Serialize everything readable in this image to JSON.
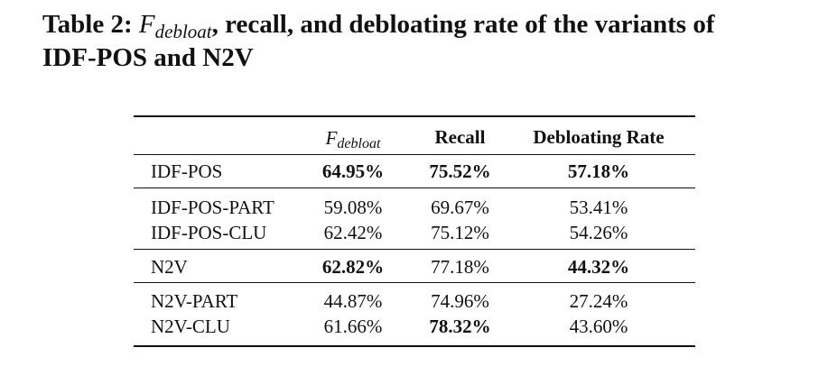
{
  "caption": {
    "label": "Table 2:",
    "f_symbol": "F",
    "f_subscript": "debloat",
    "rest_line1": ", recall, and debloating rate of the variants of",
    "rest_line2": "IDF-POS and N2V"
  },
  "table": {
    "headers": {
      "variant": "",
      "f_symbol": "F",
      "f_subscript": "debloat",
      "recall": "Recall",
      "debloating_rate": "Debloating Rate"
    },
    "rows": [
      {
        "name": "IDF-POS",
        "f": "64.95%",
        "recall": "75.52%",
        "rate": "57.18%",
        "bold": {
          "f": true,
          "recall": true,
          "rate": true
        }
      },
      {
        "name": "IDF-POS-PART",
        "f": "59.08%",
        "recall": "69.67%",
        "rate": "53.41%",
        "bold": {
          "f": false,
          "recall": false,
          "rate": false
        }
      },
      {
        "name": "IDF-POS-CLU",
        "f": "62.42%",
        "recall": "75.12%",
        "rate": "54.26%",
        "bold": {
          "f": false,
          "recall": false,
          "rate": false
        }
      },
      {
        "name": "N2V",
        "f": "62.82%",
        "recall": "77.18%",
        "rate": "44.32%",
        "bold": {
          "f": true,
          "recall": false,
          "rate": true
        }
      },
      {
        "name": "N2V-PART",
        "f": "44.87%",
        "recall": "74.96%",
        "rate": "27.24%",
        "bold": {
          "f": false,
          "recall": false,
          "rate": false
        }
      },
      {
        "name": "N2V-CLU",
        "f": "61.66%",
        "recall": "78.32%",
        "rate": "43.60%",
        "bold": {
          "f": false,
          "recall": true,
          "rate": false
        }
      }
    ]
  }
}
